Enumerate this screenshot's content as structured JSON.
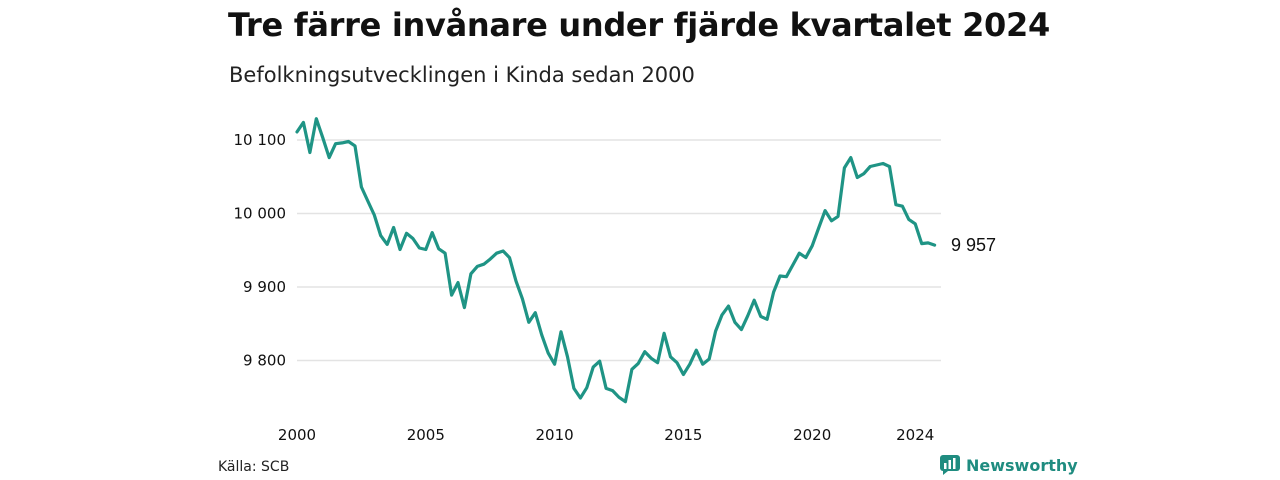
{
  "header": {
    "title": "Tre färre invånare under fjärde kvartalet 2024",
    "subtitle": "Befolkningsutvecklingen i Kinda sedan 2000"
  },
  "footer": {
    "source": "Källa: SCB",
    "brand": "Newsworthy"
  },
  "colors": {
    "line": "#1f9485",
    "grid": "#e3e3e3",
    "brand": "#1f8c80"
  },
  "chart_data": {
    "type": "line",
    "title": "Tre färre invånare under fjärde kvartalet 2024",
    "subtitle": "Befolkningsutvecklingen i Kinda sedan 2000",
    "xlabel": "",
    "ylabel": "",
    "xlim": [
      2000,
      2025
    ],
    "ylim": [
      9730,
      10140
    ],
    "grid": true,
    "legend": "none",
    "x_ticks": [
      2000,
      2005,
      2010,
      2015,
      2020,
      2024
    ],
    "x_tick_labels": [
      "2000",
      "2005",
      "2010",
      "2015",
      "2020",
      "2024"
    ],
    "y_ticks": [
      9800,
      9900,
      10000,
      10100
    ],
    "y_tick_labels": [
      "9 800",
      "9 900",
      "10 000",
      "10 100"
    ],
    "end_label": "9 957",
    "series": [
      {
        "x": [
          2000.0,
          2000.25,
          2000.5,
          2000.75,
          2001.0,
          2001.25,
          2001.5,
          2001.75,
          2002.0,
          2002.25,
          2002.5,
          2002.75,
          2003.0,
          2003.25,
          2003.5,
          2003.75,
          2004.0,
          2004.25,
          2004.5,
          2004.75,
          2005.0,
          2005.25,
          2005.5,
          2005.75,
          2006.0,
          2006.25,
          2006.5,
          2006.75,
          2007.0,
          2007.25,
          2007.5,
          2007.75,
          2008.0,
          2008.25,
          2008.5,
          2008.75,
          2009.0,
          2009.25,
          2009.5,
          2009.75,
          2010.0,
          2010.25,
          2010.5,
          2010.75,
          2011.0,
          2011.25,
          2011.5,
          2011.75,
          2012.0,
          2012.25,
          2012.5,
          2012.75,
          2013.0,
          2013.25,
          2013.5,
          2013.75,
          2014.0,
          2014.25,
          2014.5,
          2014.75,
          2015.0,
          2015.25,
          2015.5,
          2015.75,
          2016.0,
          2016.25,
          2016.5,
          2016.75,
          2017.0,
          2017.25,
          2017.5,
          2017.75,
          2018.0,
          2018.25,
          2018.5,
          2018.75,
          2019.0,
          2019.25,
          2019.5,
          2019.75,
          2020.0,
          2020.25,
          2020.5,
          2020.75,
          2021.0,
          2021.25,
          2021.5,
          2021.75,
          2022.0,
          2022.25,
          2022.5,
          2022.75,
          2023.0,
          2023.25,
          2023.5,
          2023.75,
          2024.0,
          2024.25,
          2024.5,
          2024.75
        ],
        "values": [
          10111,
          10124,
          10083,
          10129,
          10103,
          10076,
          10095,
          10096,
          10098,
          10092,
          10036,
          10017,
          9998,
          9970,
          9958,
          9981,
          9951,
          9973,
          9966,
          9953,
          9951,
          9974,
          9952,
          9946,
          9889,
          9906,
          9872,
          9918,
          9928,
          9931,
          9938,
          9946,
          9949,
          9940,
          9908,
          9884,
          9852,
          9865,
          9835,
          9810,
          9795,
          9839,
          9805,
          9762,
          9749,
          9763,
          9791,
          9799,
          9762,
          9759,
          9750,
          9744,
          9788,
          9796,
          9812,
          9803,
          9797,
          9837,
          9805,
          9797,
          9781,
          9795,
          9814,
          9795,
          9802,
          9840,
          9862,
          9874,
          9852,
          9842,
          9861,
          9882,
          9860,
          9856,
          9893,
          9915,
          9914,
          9930,
          9946,
          9940,
          9956,
          9980,
          10004,
          9990,
          9996,
          10062,
          10076,
          10049,
          10054,
          10064,
          10066,
          10068,
          10064,
          10012,
          10010,
          9992,
          9986,
          9959,
          9960,
          9957
        ]
      }
    ]
  }
}
